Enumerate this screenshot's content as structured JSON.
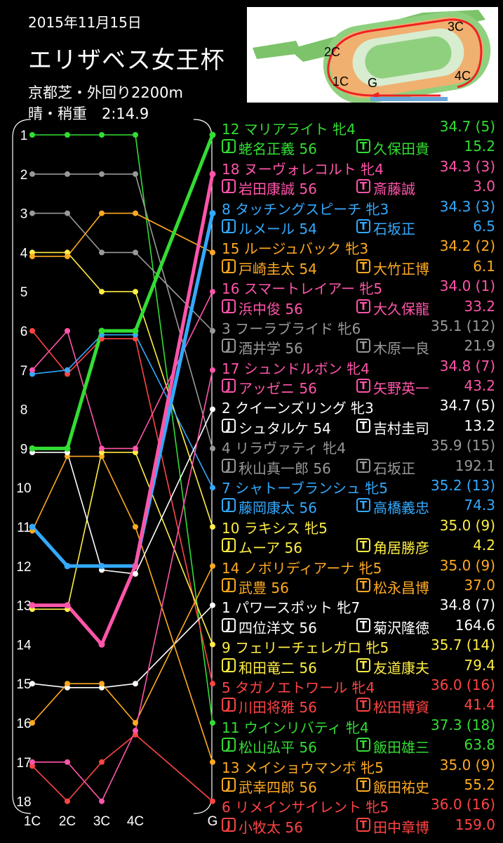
{
  "header": {
    "date": "2015年11月15日",
    "race": "エリザベス女王杯",
    "course": "京都芝・外回り2200m",
    "condition": "晴・稍重　2:14.9"
  },
  "course_map": {
    "labels": [
      "3C",
      "2C",
      "1C",
      "G",
      "4C"
    ]
  },
  "colors": {
    "bg": "#000000",
    "green": "#33dd33",
    "grey": "#999999",
    "pink": "#ff55aa",
    "blue": "#33aaff",
    "yellow": "#ffee44",
    "orange": "#ffaa22",
    "red": "#ff4444",
    "white": "#ffffff"
  },
  "chart_data": {
    "type": "line",
    "title": "エリザベス女王杯",
    "x": [
      "1C",
      "2C",
      "3C",
      "4C",
      "G"
    ],
    "y_ticks": [
      "1",
      "2",
      "3",
      "4",
      "5",
      "6",
      "7",
      "8",
      "9",
      "10",
      "11",
      "12",
      "13",
      "14",
      "15",
      "16",
      "17",
      "18"
    ],
    "ylim": [
      1,
      18
    ],
    "series": [
      {
        "name": "マリアライト",
        "color": "#33dd33",
        "bold": true,
        "values": [
          9,
          9,
          6,
          6,
          1
        ]
      },
      {
        "name": "ヌーヴォレコルト",
        "color": "#ff55aa",
        "bold": true,
        "values": [
          13,
          13,
          14,
          12,
          2
        ]
      },
      {
        "name": "タッチングスピーチ",
        "color": "#33aaff",
        "bold": true,
        "values": [
          11,
          12,
          12,
          12,
          3
        ]
      },
      {
        "name": "ルージュバック",
        "color": "#ffaa22",
        "values": [
          4.1,
          4.1,
          3,
          3,
          4
        ]
      },
      {
        "name": "スマートレイアー",
        "color": "#ff55aa",
        "values": [
          7,
          6,
          9,
          9,
          5
        ]
      },
      {
        "name": "フーラブライド",
        "color": "#999999",
        "values": [
          3,
          3,
          4,
          4,
          6
        ]
      },
      {
        "name": "シュンドルボン",
        "color": "#ff55aa",
        "values": [
          17,
          17,
          18,
          16.2,
          7
        ]
      },
      {
        "name": "クイーンズリング",
        "color": "#ffffff",
        "values": [
          9.1,
          9.1,
          12.1,
          12.2,
          8
        ]
      },
      {
        "name": "リラヴァティ",
        "color": "#999999",
        "values": [
          2,
          2,
          2,
          2,
          9
        ]
      },
      {
        "name": "シャトーブランシュ",
        "color": "#33aaff",
        "values": [
          7.1,
          7,
          6.1,
          6.1,
          10
        ]
      },
      {
        "name": "ラキシス",
        "color": "#ffee44",
        "values": [
          4,
          4,
          5,
          5,
          11
        ]
      },
      {
        "name": "ノボリディアーナ",
        "color": "#ffaa22",
        "values": [
          16,
          15,
          15,
          16,
          12
        ]
      },
      {
        "name": "パワースポット",
        "color": "#ffffff",
        "values": [
          15,
          15.1,
          15.1,
          15,
          13
        ]
      },
      {
        "name": "フェリーチェレガロ",
        "color": "#ffee44",
        "values": [
          13.1,
          13.1,
          9.1,
          9.1,
          14
        ]
      },
      {
        "name": "タガノエトワール",
        "color": "#ff4444",
        "values": [
          6,
          7.1,
          6.2,
          6.2,
          15
        ]
      },
      {
        "name": "ウインリバティ",
        "color": "#33dd33",
        "values": [
          1,
          1,
          1,
          1,
          16
        ]
      },
      {
        "name": "メイショウマンボ",
        "color": "#ffaa22",
        "values": [
          11.1,
          9.2,
          9.2,
          11,
          17
        ]
      },
      {
        "name": "リメインサイレント",
        "color": "#ff4444",
        "values": [
          17.1,
          18,
          17,
          16.3,
          18
        ]
      }
    ]
  },
  "results": [
    {
      "name": "12 マリアライト 牝4",
      "time": "34.7 (5)",
      "jockey": "蛯名正義 56",
      "trainer": "久保田貴",
      "odds": "15.2",
      "color": "#33dd33"
    },
    {
      "name": "18 ヌーヴォレコルト 牝4",
      "time": "34.3 (3)",
      "jockey": "岩田康誠 56",
      "trainer": "斎藤誠",
      "odds": "3.0",
      "color": "#ff55aa"
    },
    {
      "name": "8 タッチングスピーチ 牝3",
      "time": "34.3 (3)",
      "jockey": "ルメール 54",
      "trainer": "石坂正",
      "odds": "6.5",
      "color": "#33aaff"
    },
    {
      "name": "15 ルージュバック 牝3",
      "time": "34.2 (2)",
      "jockey": "戸崎圭太 54",
      "trainer": "大竹正博",
      "odds": "6.1",
      "color": "#ffaa22"
    },
    {
      "name": "16 スマートレイアー 牝5",
      "time": "34.0 (1)",
      "jockey": "浜中俊 56",
      "trainer": "大久保龍",
      "odds": "33.2",
      "color": "#ff55aa"
    },
    {
      "name": "3 フーラブライド 牝6",
      "time": "35.1 (12)",
      "jockey": "酒井学 56",
      "trainer": "木原一良",
      "odds": "21.9",
      "color": "#999999"
    },
    {
      "name": "17 シュンドルボン 牝4",
      "time": "34.8 (7)",
      "jockey": "アッゼニ 56",
      "trainer": "矢野英一",
      "odds": "43.2",
      "color": "#ff55aa"
    },
    {
      "name": "2 クイーンズリング 牝3",
      "time": "34.7 (5)",
      "jockey": "シュタルケ 54",
      "trainer": "吉村圭司",
      "odds": "13.2",
      "color": "#ffffff"
    },
    {
      "name": "4 リラヴァティ 牝4",
      "time": "35.9 (15)",
      "jockey": "秋山真一郎 56",
      "trainer": "石坂正",
      "odds": "192.1",
      "color": "#999999"
    },
    {
      "name": "7 シャトーブランシュ 牝5",
      "time": "35.2 (13)",
      "jockey": "藤岡康太 56",
      "trainer": "高橋義忠",
      "odds": "74.3",
      "color": "#33aaff"
    },
    {
      "name": "10 ラキシス 牝5",
      "time": "35.0 (9)",
      "jockey": "ムーア 56",
      "trainer": "角居勝彦",
      "odds": "4.2",
      "color": "#ffee44"
    },
    {
      "name": "14 ノボリディアーナ 牝5",
      "time": "35.0 (9)",
      "jockey": "武豊 56",
      "trainer": "松永昌博",
      "odds": "37.0",
      "color": "#ffaa22"
    },
    {
      "name": "1 パワースポット 牝7",
      "time": "34.8 (7)",
      "jockey": "四位洋文 56",
      "trainer": "菊沢隆徳",
      "odds": "164.6",
      "color": "#ffffff"
    },
    {
      "name": "9 フェリーチェレガロ 牝5",
      "time": "35.7 (14)",
      "jockey": "和田竜二 56",
      "trainer": "友道康夫",
      "odds": "79.4",
      "color": "#ffee44"
    },
    {
      "name": "5 タガノエトワール 牝4",
      "time": "36.0 (16)",
      "jockey": "川田将雅 56",
      "trainer": "松田博資",
      "odds": "41.4",
      "color": "#ff4444"
    },
    {
      "name": "11 ウインリバティ 牝4",
      "time": "37.3 (18)",
      "jockey": "松山弘平 56",
      "trainer": "飯田雄三",
      "odds": "63.8",
      "color": "#33dd33"
    },
    {
      "name": "13 メイショウマンボ 牝5",
      "time": "35.0 (9)",
      "jockey": "武幸四郎 56",
      "trainer": "飯田祐史",
      "odds": "55.2",
      "color": "#ffaa22"
    },
    {
      "name": "6 リメインサイレント 牝5",
      "time": "36.0 (16)",
      "jockey": "小牧太 56",
      "trainer": "田中章博",
      "odds": "159.0",
      "color": "#ff4444"
    }
  ],
  "box_labels": {
    "jockey": "J",
    "trainer": "T"
  }
}
